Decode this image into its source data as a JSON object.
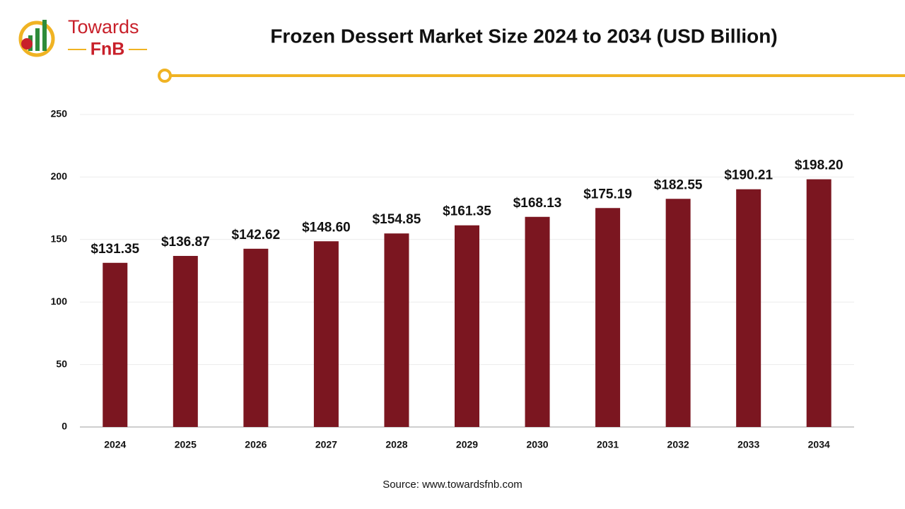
{
  "logo": {
    "brand": "Towards",
    "sub": "FnB"
  },
  "chart_data": {
    "type": "bar",
    "title": "Frozen Dessert Market Size 2024 to 2034 (USD Billion)",
    "categories": [
      "2024",
      "2025",
      "2026",
      "2027",
      "2028",
      "2029",
      "2030",
      "2031",
      "2032",
      "2033",
      "2034"
    ],
    "values": [
      131.35,
      136.87,
      142.62,
      148.6,
      154.85,
      161.35,
      168.13,
      175.19,
      182.55,
      190.21,
      198.2
    ],
    "value_labels": [
      "$131.35",
      "$136.87",
      "$142.62",
      "$148.60",
      "$154.85",
      "$161.35",
      "$168.13",
      "$175.19",
      "$182.55",
      "$190.21",
      "$198.20"
    ],
    "color": "#7b1620",
    "ylim": [
      0,
      250
    ],
    "yticks": [
      0,
      50,
      100,
      150,
      200,
      250
    ],
    "grid": true,
    "source": "Source: www.towardsfnb.com"
  }
}
